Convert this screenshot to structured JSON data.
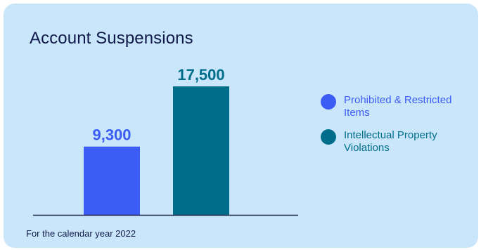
{
  "colors": {
    "background": "#cae6fb",
    "title": "#111a4a",
    "axis": "#1f2548"
  },
  "chart_data": {
    "type": "bar",
    "title": "Account Suspensions",
    "categories": [
      "Prohibited & Restricted Items",
      "Intellectual Property Violations"
    ],
    "values": [
      9300,
      17500
    ],
    "value_labels": [
      "9,300",
      "17,500"
    ],
    "colors": [
      "#3b5cf5",
      "#006e8a"
    ],
    "label_colors": [
      "#3b5cf5",
      "#006e8a"
    ],
    "ylim": [
      0,
      17500
    ],
    "grid": false,
    "legend_position": "right",
    "legend": [
      {
        "label": "Prohibited & Restricted Items",
        "color": "#3b5cf5",
        "text_color": "#3b5cf5"
      },
      {
        "label": "Intellectual Property Violations",
        "color": "#006e8a",
        "text_color": "#006e8a"
      }
    ],
    "footnote": "For the calendar year 2022"
  }
}
